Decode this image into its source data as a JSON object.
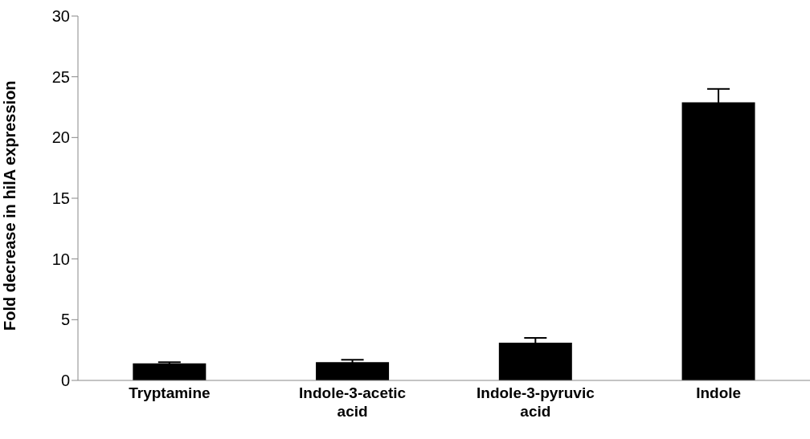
{
  "chart_data": {
    "type": "bar",
    "ylabel": "Fold decrease in hilA expression",
    "categories": [
      "Tryptamine",
      "Indole-3-acetic acid",
      "Indole-3-pyruvic acid",
      "Indole"
    ],
    "values": [
      1.4,
      1.5,
      3.1,
      22.9
    ],
    "errors": [
      0.1,
      0.2,
      0.4,
      1.1
    ],
    "color": "#000000",
    "ylim": [
      0,
      30
    ],
    "yticks": [
      0,
      5,
      10,
      15,
      20,
      25,
      30
    ],
    "grid": false,
    "legend": false
  }
}
